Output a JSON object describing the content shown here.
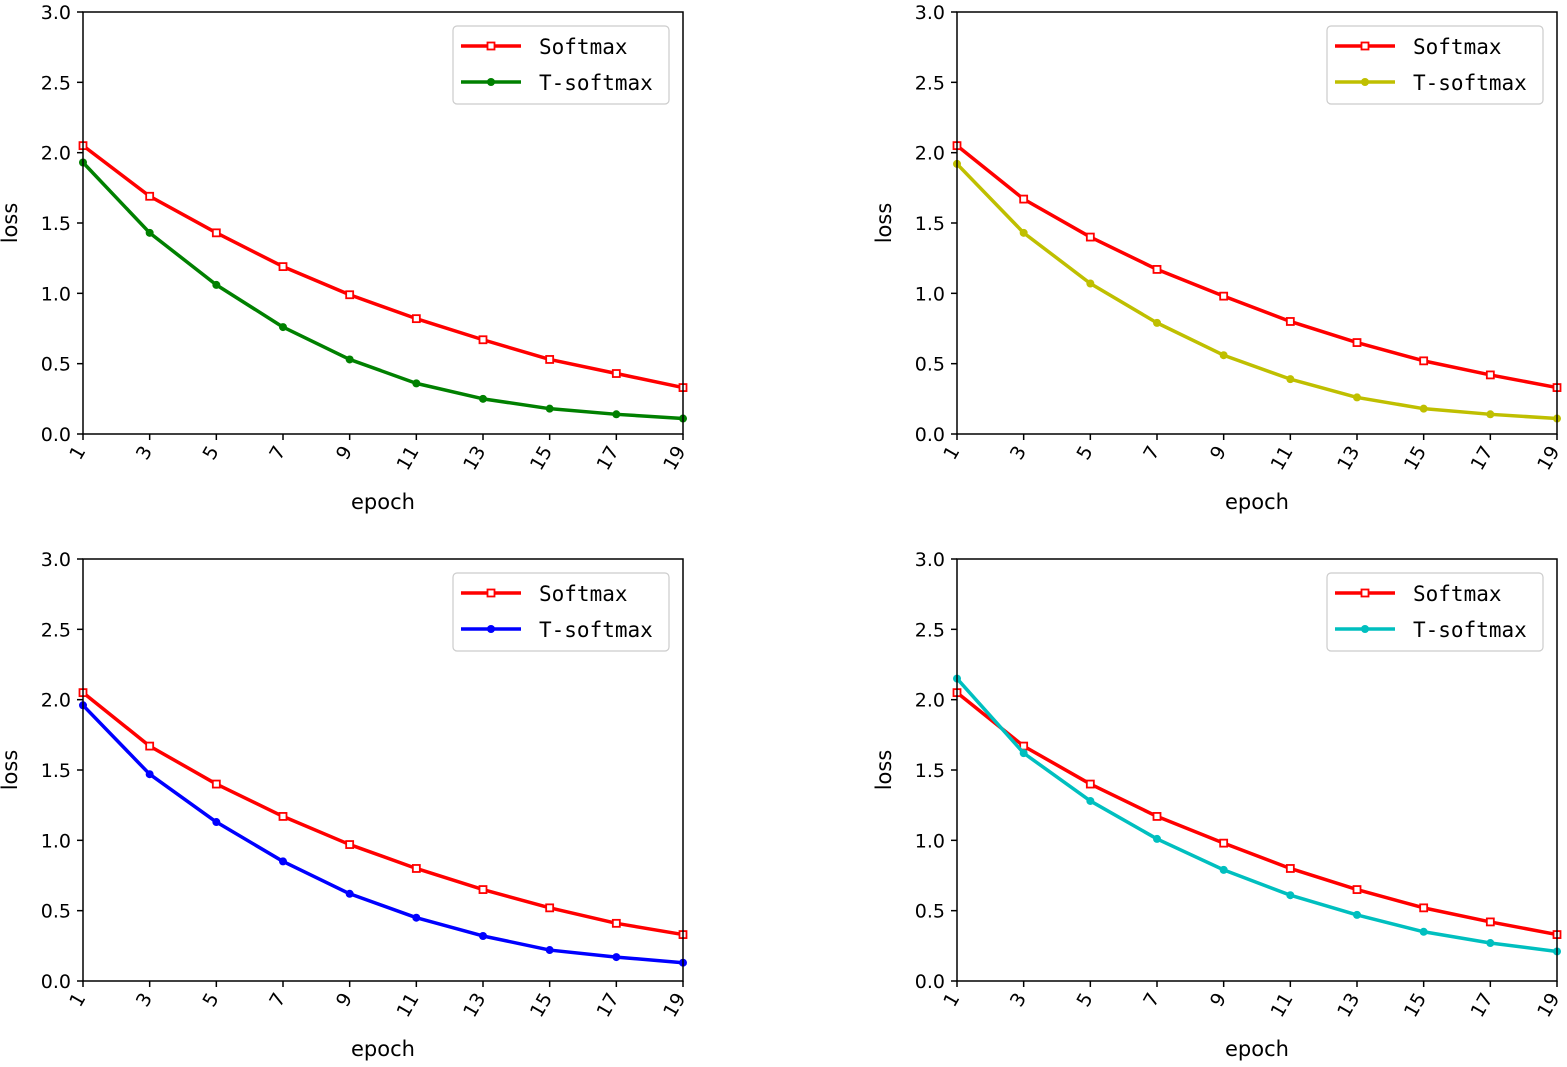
{
  "chart_data": [
    {
      "type": "line",
      "xlabel": "epoch",
      "ylabel": "loss",
      "x": [
        1,
        3,
        5,
        7,
        9,
        11,
        13,
        15,
        17,
        19
      ],
      "xticks": [
        "1",
        "3",
        "5",
        "7",
        "9",
        "11",
        "13",
        "15",
        "17",
        "19"
      ],
      "ylim": [
        0,
        3
      ],
      "yticks": [
        "0.0",
        "0.5",
        "1.0",
        "1.5",
        "2.0",
        "2.5",
        "3.0"
      ],
      "legend_position": "top-right",
      "grid": false,
      "series": [
        {
          "name": "Softmax",
          "color": "#ff0000",
          "marker": "square-open",
          "values": [
            2.05,
            1.69,
            1.43,
            1.19,
            0.99,
            0.82,
            0.67,
            0.53,
            0.43,
            0.33
          ]
        },
        {
          "name": "T-softmax",
          "color": "#008000",
          "marker": "circle",
          "values": [
            1.93,
            1.43,
            1.06,
            0.76,
            0.53,
            0.36,
            0.25,
            0.18,
            0.14,
            0.11
          ]
        }
      ]
    },
    {
      "type": "line",
      "xlabel": "epoch",
      "ylabel": "loss",
      "x": [
        1,
        3,
        5,
        7,
        9,
        11,
        13,
        15,
        17,
        19
      ],
      "xticks": [
        "1",
        "3",
        "5",
        "7",
        "9",
        "11",
        "13",
        "15",
        "17",
        "19"
      ],
      "ylim": [
        0,
        3
      ],
      "yticks": [
        "0.0",
        "0.5",
        "1.0",
        "1.5",
        "2.0",
        "2.5",
        "3.0"
      ],
      "legend_position": "top-right",
      "grid": false,
      "series": [
        {
          "name": "Softmax",
          "color": "#ff0000",
          "marker": "square-open",
          "values": [
            2.05,
            1.67,
            1.4,
            1.17,
            0.98,
            0.8,
            0.65,
            0.52,
            0.42,
            0.33
          ]
        },
        {
          "name": "T-softmax",
          "color": "#bfbf00",
          "marker": "circle",
          "values": [
            1.92,
            1.43,
            1.07,
            0.79,
            0.56,
            0.39,
            0.26,
            0.18,
            0.14,
            0.11
          ]
        }
      ]
    },
    {
      "type": "line",
      "xlabel": "epoch",
      "ylabel": "loss",
      "x": [
        1,
        3,
        5,
        7,
        9,
        11,
        13,
        15,
        17,
        19
      ],
      "xticks": [
        "1",
        "3",
        "5",
        "7",
        "9",
        "11",
        "13",
        "15",
        "17",
        "19"
      ],
      "ylim": [
        0,
        3
      ],
      "yticks": [
        "0.0",
        "0.5",
        "1.0",
        "1.5",
        "2.0",
        "2.5",
        "3.0"
      ],
      "legend_position": "top-right",
      "grid": false,
      "series": [
        {
          "name": "Softmax",
          "color": "#ff0000",
          "marker": "square-open",
          "values": [
            2.05,
            1.67,
            1.4,
            1.17,
            0.97,
            0.8,
            0.65,
            0.52,
            0.41,
            0.33
          ]
        },
        {
          "name": "T-softmax",
          "color": "#0000ff",
          "marker": "circle",
          "values": [
            1.96,
            1.47,
            1.13,
            0.85,
            0.62,
            0.45,
            0.32,
            0.22,
            0.17,
            0.13
          ]
        }
      ]
    },
    {
      "type": "line",
      "xlabel": "epoch",
      "ylabel": "loss",
      "x": [
        1,
        3,
        5,
        7,
        9,
        11,
        13,
        15,
        17,
        19
      ],
      "xticks": [
        "1",
        "3",
        "5",
        "7",
        "9",
        "11",
        "13",
        "15",
        "17",
        "19"
      ],
      "ylim": [
        0,
        3
      ],
      "yticks": [
        "0.0",
        "0.5",
        "1.0",
        "1.5",
        "2.0",
        "2.5",
        "3.0"
      ],
      "legend_position": "top-right",
      "grid": false,
      "series": [
        {
          "name": "Softmax",
          "color": "#ff0000",
          "marker": "square-open",
          "values": [
            2.05,
            1.67,
            1.4,
            1.17,
            0.98,
            0.8,
            0.65,
            0.52,
            0.42,
            0.33
          ]
        },
        {
          "name": "T-softmax",
          "color": "#00bfbf",
          "marker": "circle",
          "values": [
            2.15,
            1.62,
            1.28,
            1.01,
            0.79,
            0.61,
            0.47,
            0.35,
            0.27,
            0.21
          ]
        }
      ]
    }
  ]
}
